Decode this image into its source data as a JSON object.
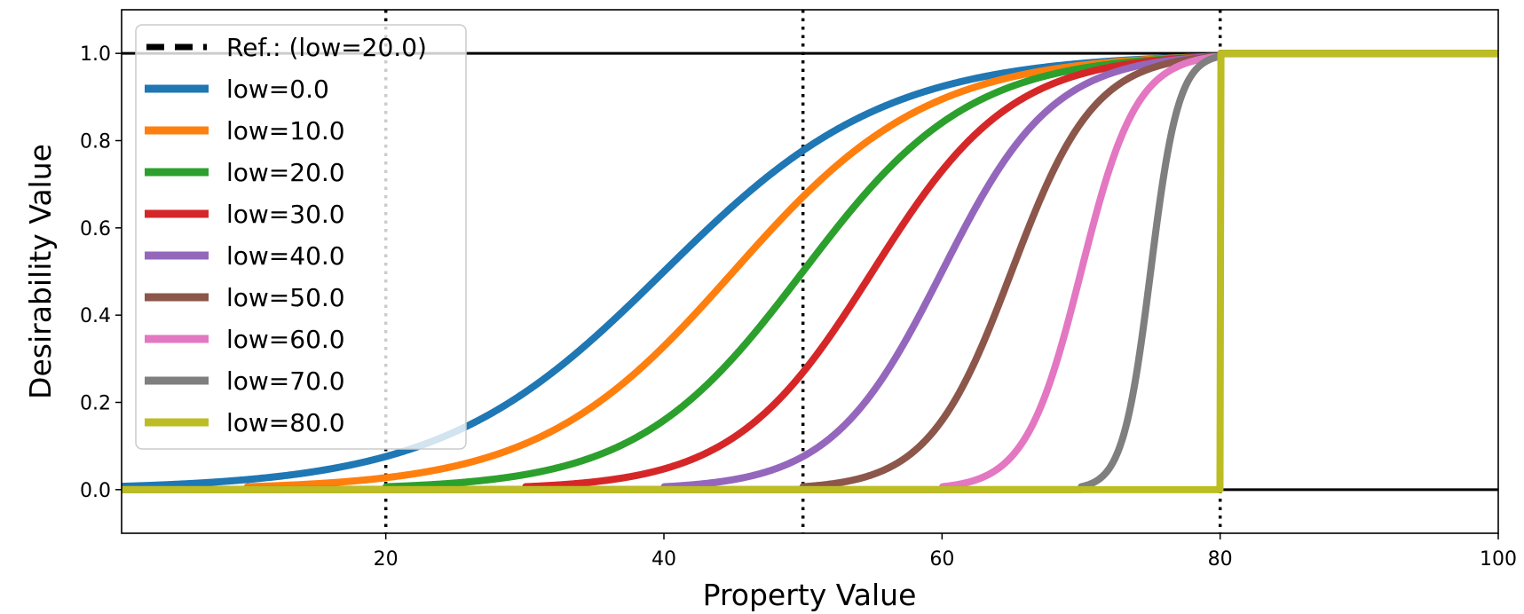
{
  "chart_data": {
    "type": "line",
    "title": "",
    "xlabel": "Property Value",
    "ylabel": "Desirability Value",
    "xlim": [
      1,
      100
    ],
    "ylim": [
      -0.1,
      1.1
    ],
    "xticks": [
      20,
      40,
      60,
      80,
      100
    ],
    "yticks": [
      0.0,
      0.2,
      0.4,
      0.6,
      0.8,
      1.0
    ],
    "ytick_labels": [
      "0.0",
      "0.2",
      "0.4",
      "0.6",
      "0.8",
      "1.0"
    ],
    "high": 80,
    "vertical_refs": [
      20,
      50,
      80
    ],
    "horizontal_refs": [
      0.0,
      1.0
    ],
    "legend": {
      "position": "upper-left",
      "ref_label": "Ref.: (low=20.0)",
      "ref_color": "#000000"
    },
    "series": [
      {
        "name": "low=0.0",
        "low": 0,
        "color": "#1f77b4"
      },
      {
        "name": "low=10.0",
        "low": 10,
        "color": "#ff7f0e"
      },
      {
        "name": "low=20.0",
        "low": 20,
        "color": "#2ca02c"
      },
      {
        "name": "low=30.0",
        "low": 30,
        "color": "#d62728"
      },
      {
        "name": "low=40.0",
        "low": 40,
        "color": "#9467bd"
      },
      {
        "name": "low=50.0",
        "low": 50,
        "color": "#8c564b"
      },
      {
        "name": "low=60.0",
        "low": 60,
        "color": "#e377c2"
      },
      {
        "name": "low=70.0",
        "low": 70,
        "color": "#7f7f7f"
      },
      {
        "name": "low=80.0",
        "low": 80,
        "color": "#bcbd22"
      }
    ]
  }
}
